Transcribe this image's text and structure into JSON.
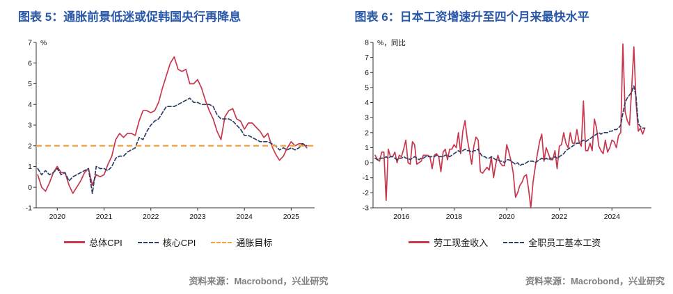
{
  "chart_data": [
    {
      "type": "line",
      "title": "图表 5：通胀前景低迷或促韩国央行再降息",
      "source": "资料来源：Macrobond，兴业研究",
      "unit_label": "%",
      "x_frequency": "monthly",
      "x_start": 2019.5833,
      "xlim": [
        2019.55,
        2025.5
      ],
      "ylim": [
        -1,
        7
      ],
      "xticks": [
        2020,
        2021,
        2022,
        2023,
        2024,
        2025
      ],
      "grid": false,
      "legend_position": "bottom",
      "ref_line": {
        "label": "通胀目标",
        "value": 2,
        "color": "#f2a33c"
      },
      "series": [
        {
          "name": "总体CPI",
          "color": "#c9374e",
          "style": "solid",
          "values": [
            0.6,
            0.0,
            -0.2,
            0.2,
            0.7,
            1.0,
            0.7,
            0.7,
            0.1,
            -0.3,
            0.0,
            0.3,
            0.7,
            0.9,
            0.1,
            0.6,
            0.5,
            0.6,
            1.1,
            1.5,
            2.3,
            2.6,
            2.4,
            2.6,
            2.6,
            2.5,
            3.2,
            3.7,
            3.7,
            3.6,
            3.7,
            4.1,
            4.8,
            5.4,
            6.0,
            6.3,
            5.7,
            5.6,
            5.7,
            5.0,
            5.0,
            5.2,
            4.8,
            4.2,
            3.7,
            3.3,
            2.7,
            2.3,
            3.4,
            3.7,
            3.8,
            3.3,
            3.2,
            2.8,
            3.1,
            3.1,
            2.9,
            2.7,
            2.4,
            2.6,
            2.0,
            1.6,
            1.3,
            1.5,
            1.9,
            2.2,
            2.0,
            2.1,
            2.1,
            1.9
          ]
        },
        {
          "name": "核心CPI",
          "color": "#2e3f66",
          "style": "dashed",
          "values": [
            0.9,
            0.6,
            0.8,
            0.6,
            0.7,
            0.9,
            0.6,
            0.7,
            0.3,
            0.5,
            0.6,
            0.7,
            0.8,
            0.9,
            -0.3,
            1.0,
            0.9,
            0.9,
            0.8,
            1.0,
            1.4,
            1.5,
            1.5,
            1.7,
            1.8,
            1.9,
            2.4,
            2.3,
            2.7,
            3.0,
            3.2,
            3.3,
            3.6,
            3.9,
            3.9,
            3.9,
            4.0,
            4.1,
            4.2,
            4.3,
            4.1,
            4.1,
            4.0,
            4.0,
            4.0,
            3.9,
            3.5,
            3.3,
            3.3,
            3.3,
            3.2,
            3.0,
            2.8,
            2.5,
            2.5,
            2.4,
            2.3,
            2.2,
            2.2,
            2.2,
            2.1,
            2.0,
            1.8,
            1.9,
            1.8,
            1.9,
            1.8,
            1.9,
            2.1,
            2.0
          ]
        }
      ]
    },
    {
      "type": "line",
      "title": "图表 6：日本工资增速升至四个月来最快水平",
      "source": "资料来源：Macrobond，兴业研究",
      "unit_label": "%，同比",
      "x_frequency": "monthly",
      "x_start": 2015.0,
      "xlim": [
        2014.92,
        2025.5
      ],
      "ylim": [
        -3,
        8
      ],
      "xticks": [
        2016,
        2018,
        2020,
        2022,
        2024
      ],
      "grid": false,
      "legend_position": "bottom",
      "series": [
        {
          "name": "劳工现金收入",
          "color": "#c9374e",
          "style": "solid",
          "values": [
            0.5,
            0.2,
            0.1,
            0.7,
            0.7,
            -2.5,
            0.9,
            0.4,
            0.4,
            0.7,
            0.0,
            0.5,
            0.4,
            0.9,
            1.5,
            0.0,
            -0.1,
            1.4,
            1.2,
            -0.1,
            0.0,
            0.1,
            0.5,
            0.5,
            0.5,
            0.4,
            -0.4,
            0.5,
            0.6,
            0.4,
            -0.6,
            0.7,
            0.9,
            0.2,
            0.9,
            0.9,
            1.2,
            1.0,
            2.0,
            0.6,
            2.1,
            2.8,
            1.6,
            0.8,
            -0.1,
            1.1,
            1.7,
            1.5,
            -0.6,
            -0.7,
            -0.5,
            -0.3,
            -0.5,
            0.4,
            -1.0,
            -0.1,
            0.5,
            0.0,
            -0.2,
            -0.2,
            1.2,
            0.7,
            0.1,
            -0.7,
            -2.3,
            -2.0,
            -1.5,
            -1.3,
            -0.9,
            -0.8,
            -1.8,
            -3.0,
            -1.3,
            -0.3,
            0.6,
            1.4,
            1.9,
            0.1,
            1.0,
            0.6,
            0.2,
            0.2,
            0.8,
            -0.4,
            1.1,
            1.2,
            2.0,
            1.3,
            1.0,
            2.0,
            1.3,
            1.3,
            2.2,
            1.4,
            1.1,
            4.1,
            0.8,
            0.8,
            1.3,
            0.8,
            2.9,
            2.3,
            1.1,
            0.8,
            0.6,
            1.5,
            0.7,
            1.0,
            1.5,
            1.4,
            1.0,
            1.8,
            2.0,
            7.9,
            3.4,
            2.8,
            2.5,
            4.9,
            7.7,
            4.0,
            2.1,
            2.3,
            1.9,
            2.3
          ]
        },
        {
          "name": "全职员工基本工资",
          "color": "#2e3f66",
          "style": "dashed",
          "values": [
            0.3,
            0.2,
            0.3,
            0.3,
            0.3,
            0.4,
            0.3,
            0.4,
            0.4,
            0.3,
            0.2,
            0.3,
            0.3,
            0.4,
            0.3,
            0.3,
            0.2,
            0.3,
            0.4,
            0.3,
            0.2,
            0.3,
            0.3,
            0.4,
            0.4,
            0.4,
            0.4,
            0.4,
            0.5,
            0.4,
            0.4,
            0.4,
            0.5,
            0.5,
            0.4,
            0.5,
            0.6,
            0.7,
            0.8,
            0.7,
            0.8,
            0.9,
            0.8,
            0.8,
            0.7,
            0.8,
            0.8,
            0.9,
            0.6,
            0.4,
            0.4,
            0.3,
            0.3,
            0.4,
            0.3,
            0.2,
            0.2,
            0.1,
            0.1,
            0.0,
            0.2,
            0.2,
            0.1,
            0.0,
            -0.1,
            0.0,
            -0.2,
            -0.1,
            -0.1,
            0.0,
            0.1,
            0.1,
            0.1,
            0.0,
            0.1,
            0.2,
            0.3,
            0.2,
            0.3,
            0.2,
            0.3,
            0.3,
            0.4,
            0.3,
            0.4,
            0.5,
            0.6,
            0.8,
            0.9,
            1.0,
            1.1,
            1.2,
            1.3,
            1.3,
            1.4,
            1.5,
            1.4,
            1.5,
            1.6,
            1.7,
            1.8,
            1.9,
            2.0,
            1.9,
            2.0,
            2.0,
            2.0,
            2.1,
            2.1,
            2.2,
            2.2,
            2.3,
            2.5,
            3.3,
            4.0,
            4.3,
            4.5,
            4.7,
            5.1,
            4.4,
            2.6,
            2.4,
            2.3,
            2.3
          ]
        }
      ]
    }
  ]
}
